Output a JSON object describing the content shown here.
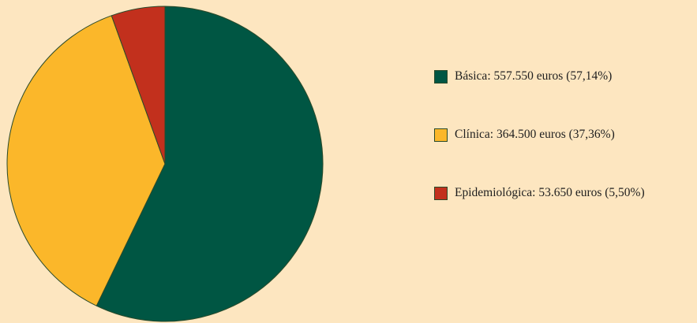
{
  "chart_data": {
    "type": "pie",
    "title": "",
    "slices": [
      {
        "name": "Básica",
        "value": 557550,
        "percent": 57.14,
        "color": "#005643",
        "label": "Básica: 557.550 euros (57,14%)"
      },
      {
        "name": "Clínica",
        "value": 364500,
        "percent": 37.36,
        "color": "#fbb72a",
        "label": "Clínica: 364.500 euros (37,36%)"
      },
      {
        "name": "Epidemiológica",
        "value": 53650,
        "percent": 5.5,
        "color": "#c2301d",
        "label": "Epidemiológica: 53.650 euros (5,50%)"
      }
    ],
    "start_angle": "top (12 o'clock)",
    "direction": "clockwise",
    "legend_position": "right"
  },
  "colors": {
    "background": "#fde6c0",
    "slice_border": "#2a4a2a"
  }
}
